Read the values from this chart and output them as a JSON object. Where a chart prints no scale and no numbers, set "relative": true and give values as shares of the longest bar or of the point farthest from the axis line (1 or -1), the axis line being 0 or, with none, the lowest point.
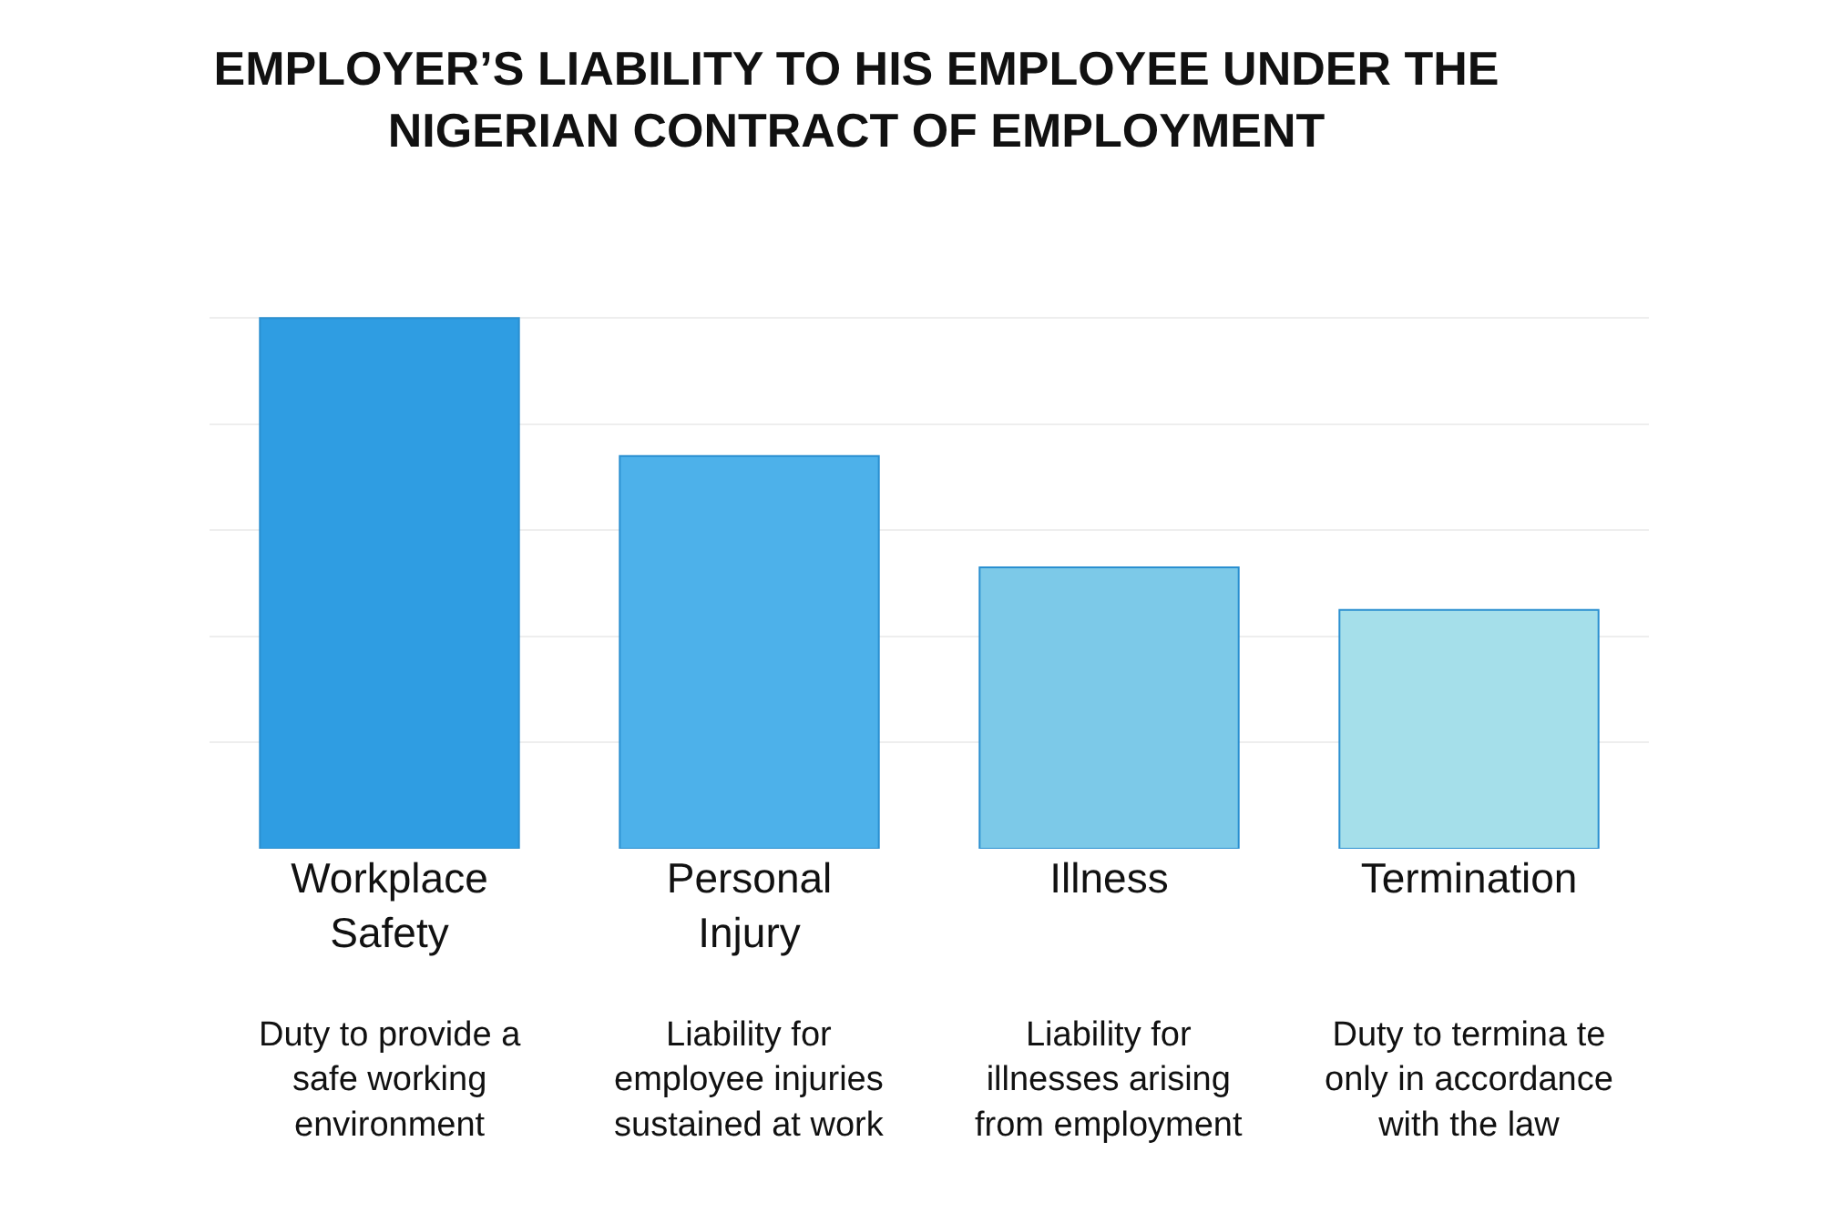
{
  "chart_data": {
    "type": "bar",
    "title": "EMPLOYER’S LIABILITY TO HIS EMPLOYEE UNDER THE NIGERIAN CONTRACT OF EMPLOYMENT",
    "categories": [
      "Workplace Safety",
      "Personal Injury",
      "Illness",
      "Termination"
    ],
    "values": [
      1,
      0.74,
      0.53,
      0.45
    ],
    "colors": [
      "#2f9de2",
      "#4db1ea",
      "#7cc9e8",
      "#a5dfea"
    ],
    "relative": true,
    "grid": "y",
    "annotations": [
      "Duty to provide a safe working environment",
      "Liability for employee injuries sustained at work",
      "Liability for illnesses arising from employment",
      "Duty to termina te only in accordance with the law"
    ]
  }
}
